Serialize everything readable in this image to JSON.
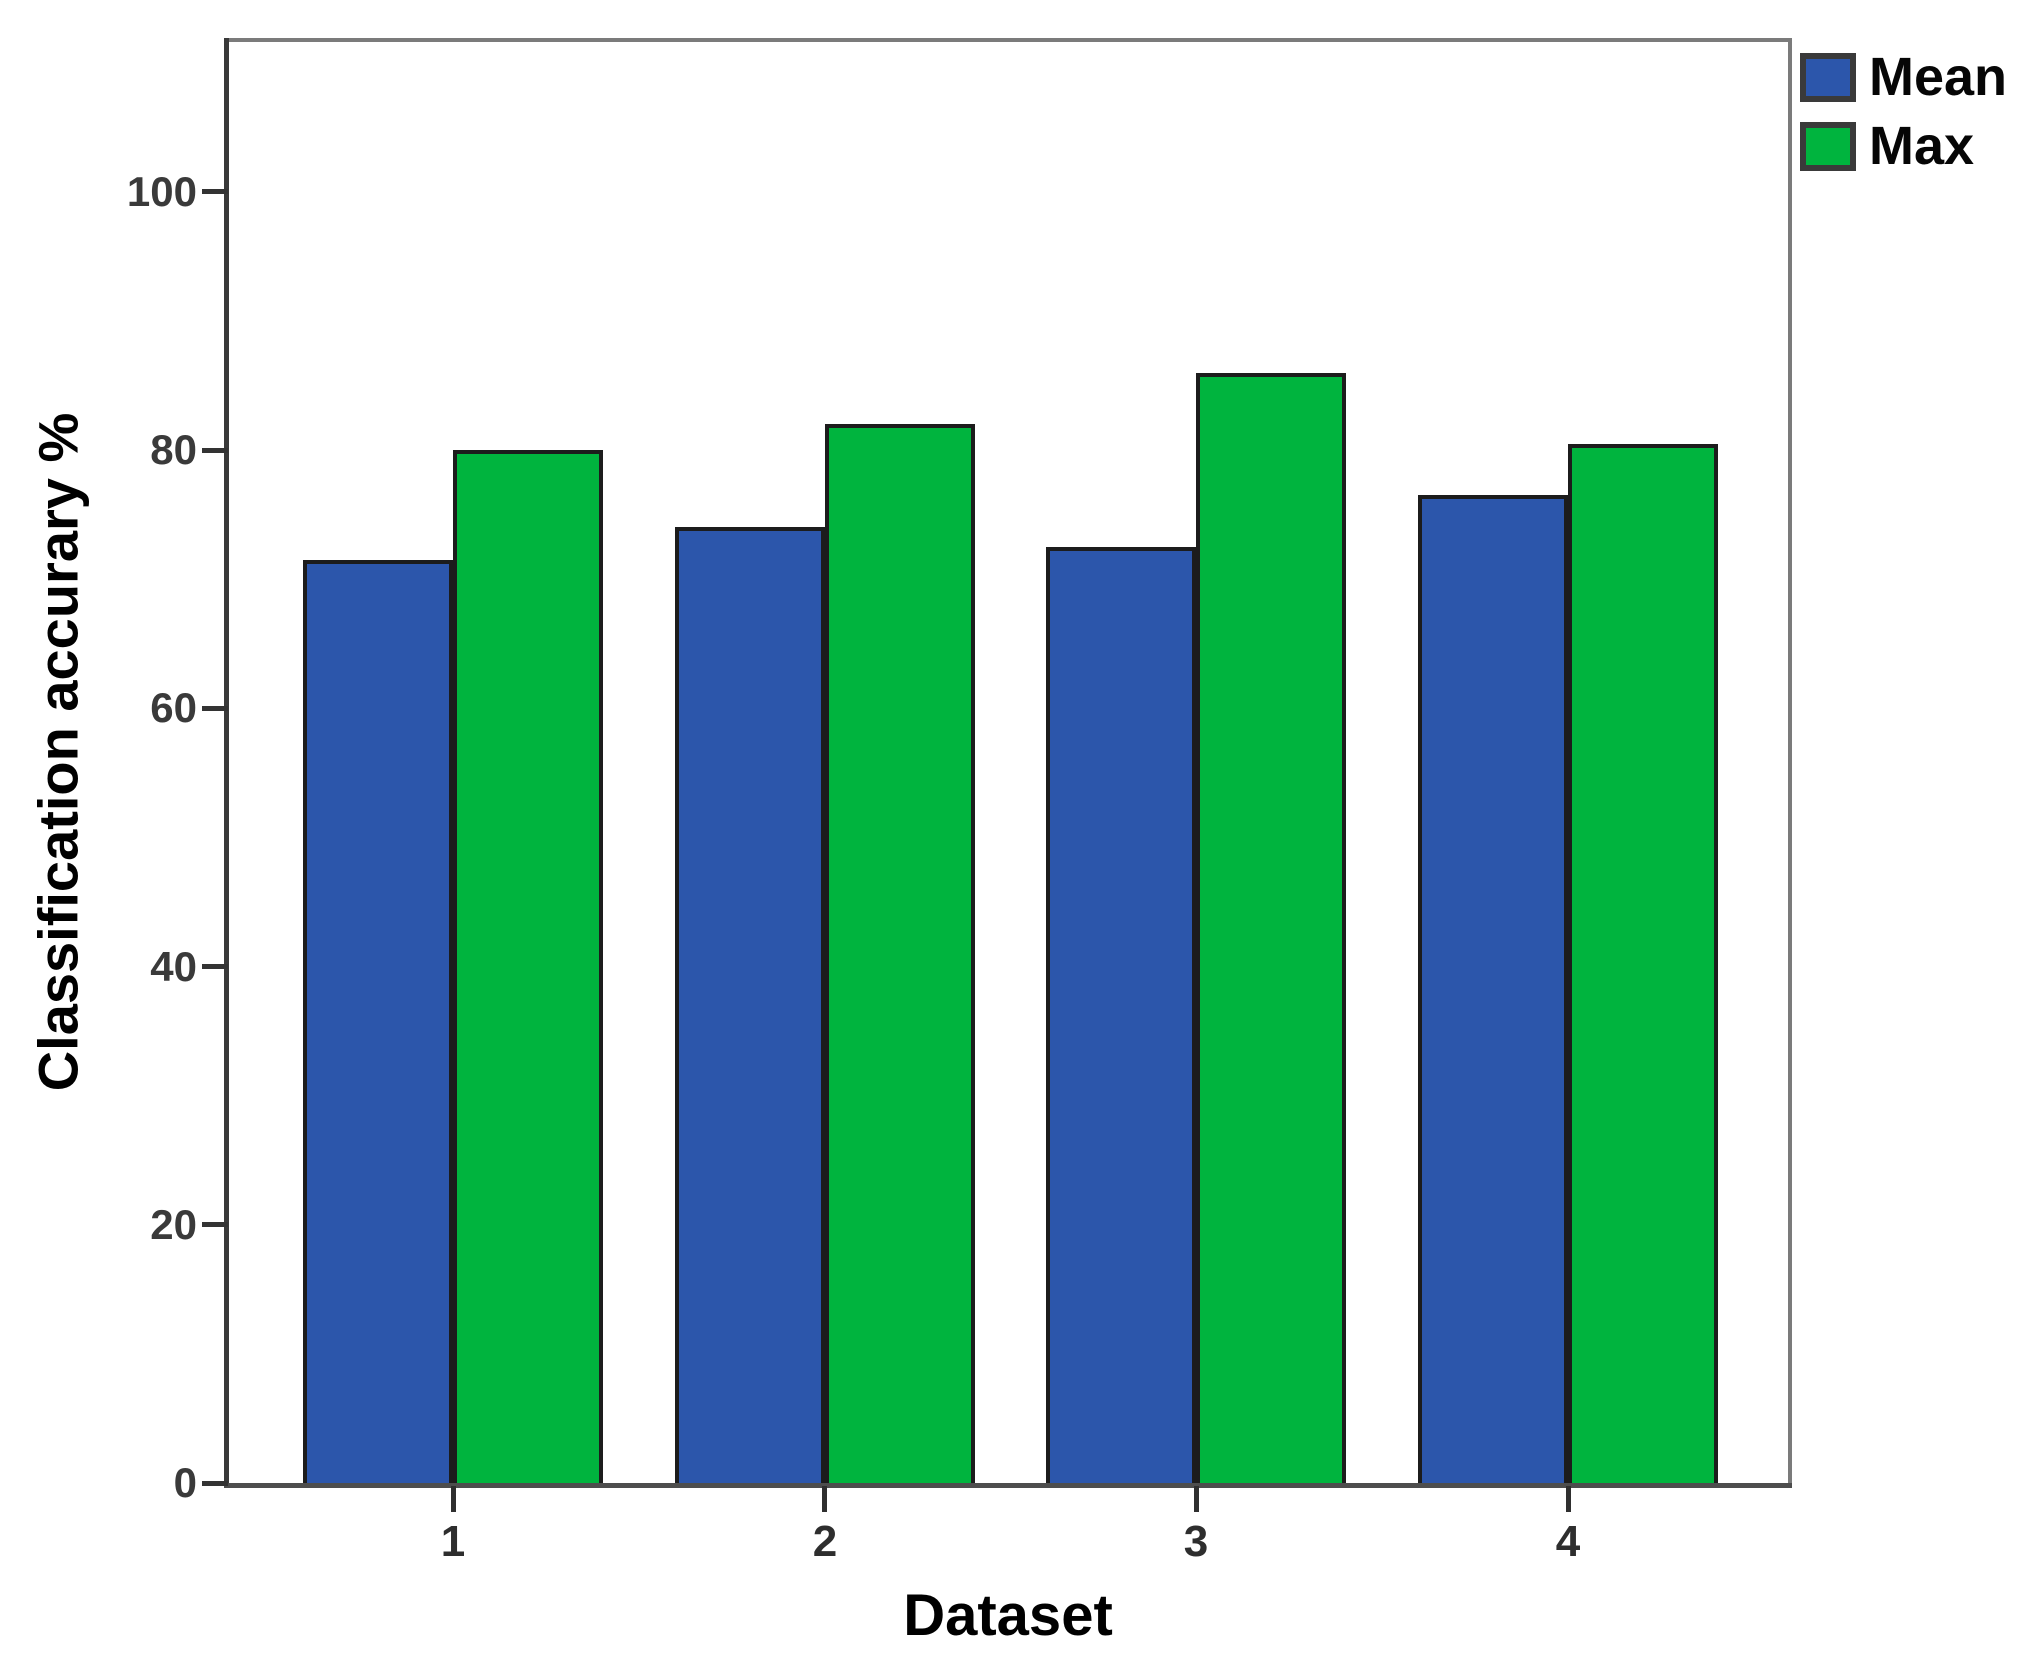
{
  "chart_data": {
    "type": "bar",
    "title": "",
    "categories": [
      "1",
      "2",
      "3",
      "4"
    ],
    "series": [
      {
        "name": "Mean",
        "color": "#2c56ab",
        "values": [
          71.5,
          74,
          72.5,
          76.5
        ]
      },
      {
        "name": "Max",
        "color": "#00b43e",
        "values": [
          80,
          82,
          86,
          80.5
        ]
      }
    ],
    "xlabel": "Dataset",
    "ylabel": "Classification accurary %",
    "y_ticks": [
      0,
      20,
      40,
      60,
      80,
      100
    ],
    "ylim": [
      0,
      111.6
    ],
    "grid": false,
    "legend_position": "top-right-outside",
    "bar_outline_color": "#1c1c1c",
    "axis_color": "#3f3f3f",
    "frame_color": "#7b7b7b"
  }
}
